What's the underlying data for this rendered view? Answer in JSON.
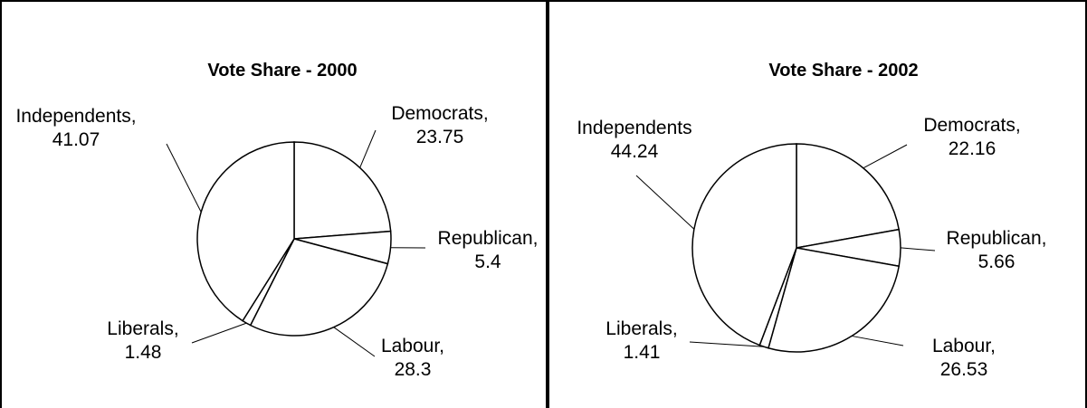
{
  "chart_data": [
    {
      "type": "pie",
      "title": "Vote Share - 2000",
      "slices": [
        {
          "label": "Democrats,",
          "value": 23.75,
          "value_text": "23.75"
        },
        {
          "label": "Republican,",
          "value": 5.4,
          "value_text": "5.4"
        },
        {
          "label": "Labour,",
          "value": 28.3,
          "value_text": "28.3"
        },
        {
          "label": "Liberals,",
          "value": 1.48,
          "value_text": "1.48"
        },
        {
          "label": "Independents,",
          "value": 41.07,
          "value_text": "41.07"
        }
      ],
      "fill_color": "#ffffff",
      "line_color": "#000000"
    },
    {
      "type": "pie",
      "title": "Vote Share - 2002",
      "slices": [
        {
          "label": "Democrats,",
          "value": 22.16,
          "value_text": "22.16"
        },
        {
          "label": "Republican,",
          "value": 5.66,
          "value_text": "5.66"
        },
        {
          "label": "Labour,",
          "value": 26.53,
          "value_text": "26.53"
        },
        {
          "label": "Liberals,",
          "value": 1.41,
          "value_text": "1.41"
        },
        {
          "label": "Independents",
          "value": 44.24,
          "value_text": "44.24"
        }
      ],
      "fill_color": "#ffffff",
      "line_color": "#000000"
    }
  ]
}
